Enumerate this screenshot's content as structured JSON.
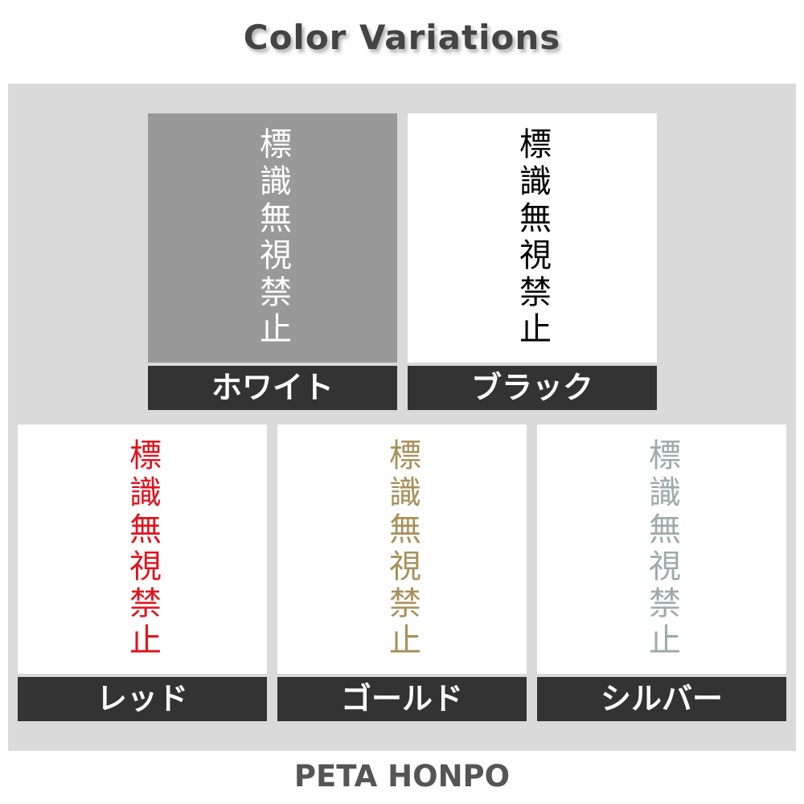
{
  "title": "Color Variations",
  "sign_text": "標識無視禁止",
  "variants": [
    {
      "label": "ホワイト",
      "text_color": "#ffffff",
      "background": "#999999"
    },
    {
      "label": "ブラック",
      "text_color": "#000000",
      "background": "#ffffff"
    },
    {
      "label": "レッド",
      "text_color": "#e0141e",
      "background": "#ffffff"
    },
    {
      "label": "ゴールド",
      "text_color": "#a8905a",
      "background": "#ffffff"
    },
    {
      "label": "シルバー",
      "text_color": "#9eaba8",
      "background": "#ffffff"
    }
  ],
  "footer": "PETA HONPO"
}
